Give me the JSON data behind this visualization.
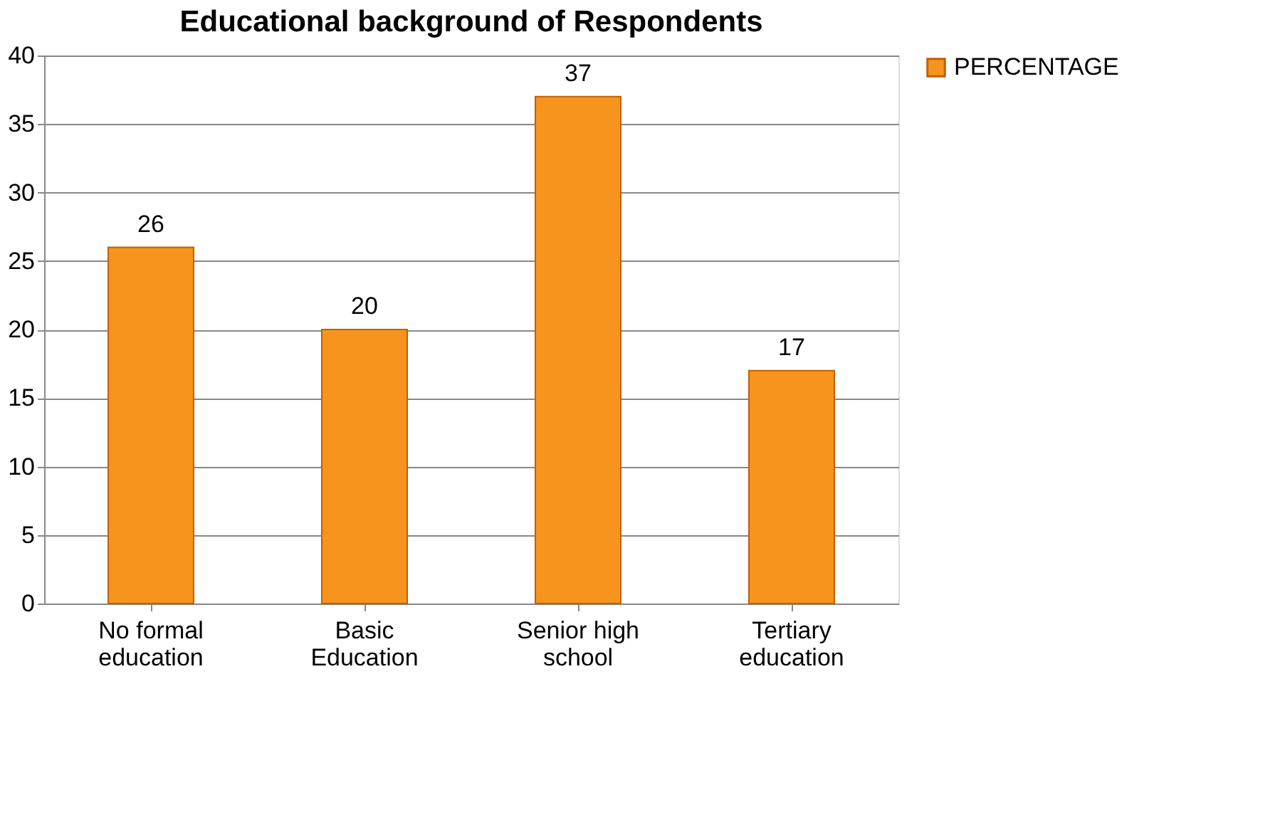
{
  "chart_data": {
    "type": "bar",
    "title": "Educational background of Respondents",
    "categories": [
      "No formal\neducation",
      "Basic\nEducation",
      "Senior high\nschool",
      "Tertiary\neducation"
    ],
    "series": [
      {
        "name": "PERCENTAGE",
        "color": "#f7941d",
        "values": [
          26,
          20,
          37,
          17
        ]
      }
    ],
    "ylim": [
      0,
      40
    ],
    "yticks": [
      0,
      5,
      10,
      15,
      20,
      25,
      30,
      35,
      40
    ],
    "grid": "y",
    "legend": "right",
    "data_labels": true
  }
}
